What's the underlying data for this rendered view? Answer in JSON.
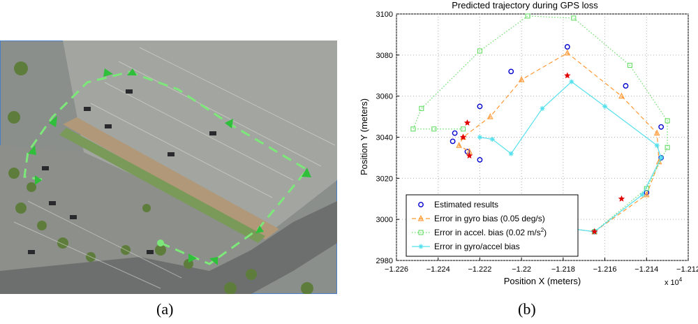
{
  "panel_a": {
    "label": "(a)",
    "image_description": "aerial-parking-lot",
    "path_color": "#7de87a"
  },
  "panel_b": {
    "label": "(b)",
    "chart_data": {
      "type": "scatter",
      "title": "Predicted trajectory during GPS loss",
      "xlabel": "Position X (meters)",
      "ylabel": "Position Y (meters)",
      "x_multiplier_label": "x 10",
      "x_multiplier_exp": "4",
      "xlim": [
        -12260,
        -12120
      ],
      "ylim": [
        2980,
        3100
      ],
      "xticks": [
        -12260,
        -12240,
        -12220,
        -12200,
        -12180,
        -12160,
        -12140,
        -12120
      ],
      "xtick_labels": [
        "−1.226",
        "−1.224",
        "−1.222",
        "−1.22",
        "−1.218",
        "−1.216",
        "−1.214",
        "−1.212"
      ],
      "yticks": [
        2980,
        3000,
        3020,
        3040,
        3060,
        3080,
        3100
      ],
      "grid": true,
      "grid_style": "dotted",
      "legend_position": "bottom-left",
      "series": [
        {
          "name": "Estimated results",
          "marker": "circle",
          "color": "#0000cc",
          "line": "none",
          "points": [
            [
              -12218,
              3001
            ],
            [
              -12165,
              2994
            ],
            [
              -12140,
              3013
            ],
            [
              -12133,
              3030
            ],
            [
              -12133,
              3045
            ],
            [
              -12150,
              3065
            ],
            [
              -12178,
              3084
            ],
            [
              -12205,
              3072
            ],
            [
              -12220,
              3055
            ],
            [
              -12232,
              3042
            ],
            [
              -12233,
              3038
            ],
            [
              -12226,
              3033
            ],
            [
              -12220,
              3029
            ]
          ]
        },
        {
          "name": "Error in gyro bias (0.05 deg/s)",
          "marker": "triangle",
          "color": "#ff9933",
          "line": "dashed",
          "points": [
            [
              -12218,
              3001
            ],
            [
              -12165,
              2994
            ],
            [
              -12140,
              3012
            ],
            [
              -12134,
              3028
            ],
            [
              -12135,
              3042
            ],
            [
              -12152,
              3060
            ],
            [
              -12178,
              3081
            ],
            [
              -12200,
              3068
            ],
            [
              -12215,
              3050
            ],
            [
              -12228,
              3040
            ],
            [
              -12230,
              3036
            ],
            [
              -12225,
              3033
            ]
          ]
        },
        {
          "name": "Error in accel. bias (0.02 m/s²)",
          "name_prefix": "Error in accel. bias (0.02 m/s",
          "name_sup": "2",
          "name_suffix": ")",
          "marker": "square",
          "color": "#66dd66",
          "line": "dotted",
          "points": [
            [
              -12218,
              3001
            ],
            [
              -12165,
              2994
            ],
            [
              -12140,
              3015
            ],
            [
              -12130,
              3035
            ],
            [
              -12130,
              3048
            ],
            [
              -12148,
              3075
            ],
            [
              -12175,
              3098
            ],
            [
              -12197,
              3099
            ],
            [
              -12220,
              3082
            ],
            [
              -12248,
              3054
            ],
            [
              -12252,
              3044
            ],
            [
              -12242,
              3044
            ],
            [
              -12228,
              3044
            ]
          ]
        },
        {
          "name": "Error in gyro/accel bias",
          "marker": "asterisk",
          "color": "#55e0ee",
          "line": "solid",
          "points": [
            [
              -12218,
              3001
            ],
            [
              -12165,
              2994
            ],
            [
              -12142,
              3012
            ],
            [
              -12133,
              3030
            ],
            [
              -12135,
              3036
            ],
            [
              -12160,
              3055
            ],
            [
              -12176,
              3067
            ],
            [
              -12190,
              3054
            ],
            [
              -12205,
              3032
            ],
            [
              -12214,
              3039
            ],
            [
              -12220,
              3040
            ]
          ]
        },
        {
          "name": "",
          "marker": "star",
          "color": "#e00000",
          "line": "none",
          "in_legend": false,
          "points": [
            [
              -12218,
              3001
            ],
            [
              -12165,
              2994
            ],
            [
              -12152,
              3010
            ],
            [
              -12178,
              3070
            ],
            [
              -12225,
              3031
            ],
            [
              -12228,
              3040
            ],
            [
              -12226,
              3047
            ]
          ]
        }
      ]
    }
  }
}
